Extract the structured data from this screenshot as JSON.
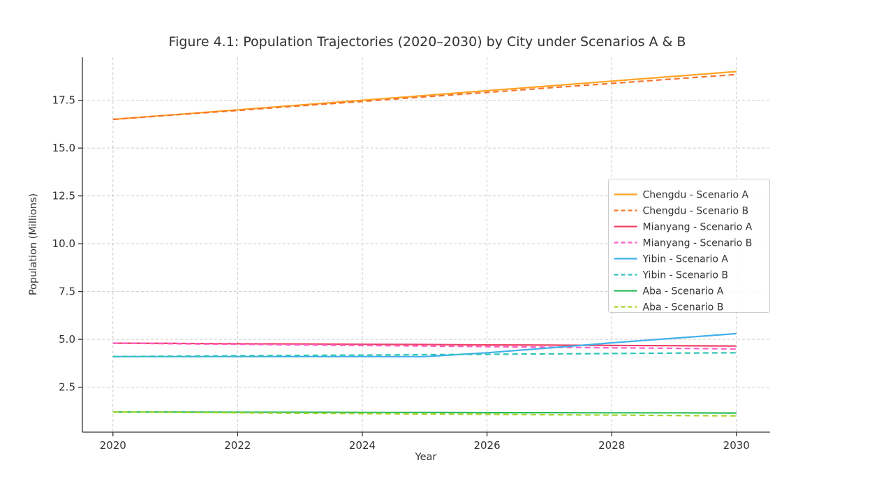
{
  "chart_data": {
    "type": "line",
    "title": "Figure 4.1: Population Trajectories (2020–2030) by City under Scenarios A & B",
    "xlabel": "Year",
    "ylabel": "Population (Millions)",
    "grid": true,
    "legend_position": "center-right",
    "xlim": [
      2019.51,
      2030.54
    ],
    "ylim": [
      0.15,
      19.75
    ],
    "x": [
      2020,
      2021,
      2022,
      2023,
      2024,
      2025,
      2026,
      2027,
      2028,
      2029,
      2030
    ],
    "xticks": [
      {
        "v": 2020,
        "label": "2020"
      },
      {
        "v": 2022,
        "label": "2022"
      },
      {
        "v": 2024,
        "label": "2024"
      },
      {
        "v": 2026,
        "label": "2026"
      },
      {
        "v": 2028,
        "label": "2028"
      },
      {
        "v": 2030,
        "label": "2030"
      }
    ],
    "yticks": [
      {
        "v": 2.5,
        "label": "2.5"
      },
      {
        "v": 5.0,
        "label": "5.0"
      },
      {
        "v": 7.5,
        "label": "7.5"
      },
      {
        "v": 10.0,
        "label": "10.0"
      },
      {
        "v": 12.5,
        "label": "12.5"
      },
      {
        "v": 15.0,
        "label": "15.0"
      },
      {
        "v": 17.5,
        "label": "17.5"
      }
    ],
    "series": [
      {
        "name": "Chengdu - Scenario A",
        "color": "#FFA424",
        "style": "solid",
        "values": [
          16.5,
          16.75,
          17.0,
          17.25,
          17.5,
          17.75,
          18.0,
          18.25,
          18.5,
          18.75,
          19.0
        ]
      },
      {
        "name": "Chengdu - Scenario B",
        "color": "#F3742C",
        "style": "dashed",
        "values": [
          16.5,
          16.74,
          16.97,
          17.21,
          17.44,
          17.68,
          17.91,
          18.15,
          18.38,
          18.62,
          18.85
        ]
      },
      {
        "name": "Mianyang - Scenario A",
        "color": "#EE4266",
        "style": "solid",
        "values": [
          4.8,
          4.79,
          4.77,
          4.76,
          4.74,
          4.73,
          4.71,
          4.7,
          4.68,
          4.67,
          4.65
        ]
      },
      {
        "name": "Mianyang - Scenario B",
        "color": "#FF5FC8",
        "style": "dashed",
        "values": [
          4.8,
          4.77,
          4.74,
          4.71,
          4.68,
          4.65,
          4.62,
          4.59,
          4.56,
          4.53,
          4.5
        ]
      },
      {
        "name": "Yibin - Scenario A",
        "color": "#41B0EA",
        "style": "solid",
        "values": [
          4.1,
          4.1,
          4.1,
          4.1,
          4.1,
          4.1,
          4.3,
          4.55,
          4.82,
          5.06,
          5.3
        ]
      },
      {
        "name": "Yibin - Scenario B",
        "color": "#2EC4B6",
        "style": "dashed",
        "values": [
          4.1,
          4.12,
          4.14,
          4.16,
          4.18,
          4.2,
          4.22,
          4.24,
          4.26,
          4.28,
          4.3
        ]
      },
      {
        "name": "Aba - Scenario A",
        "color": "#2EBE5F",
        "style": "solid",
        "values": [
          1.2,
          1.2,
          1.19,
          1.19,
          1.18,
          1.18,
          1.17,
          1.17,
          1.16,
          1.16,
          1.15
        ]
      },
      {
        "name": "Aba - Scenario B",
        "color": "#A6D62C",
        "style": "dashed",
        "values": [
          1.2,
          1.18,
          1.16,
          1.14,
          1.12,
          1.1,
          1.08,
          1.06,
          1.04,
          1.02,
          1.0
        ]
      }
    ]
  }
}
